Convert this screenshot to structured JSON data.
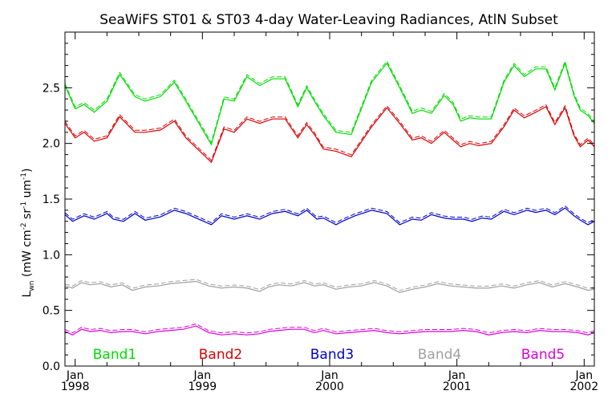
{
  "chart_data": {
    "type": "line",
    "title": "SeaWiFS ST01 & ST03 4-day Water-Leaving Radiances, AtlN Subset",
    "ylabel": {
      "main": "L",
      "sub": "wn",
      "units_pre": " (mW cm",
      "units_sup1": "-2",
      "units_mid": " sr",
      "units_sup2": "-1",
      "units_mid2": " um",
      "units_sup3": "-1",
      "units_post": ")"
    },
    "xlim": [
      1997.92,
      2002.08
    ],
    "ylim": [
      0,
      3.0
    ],
    "y_ticks": [
      0.0,
      0.5,
      1.0,
      1.5,
      2.0,
      2.5
    ],
    "y_tick_labels": [
      "0.0",
      "0.5",
      "1.0",
      "1.5",
      "2.0",
      "2.5"
    ],
    "x_ticks": [
      {
        "value": 1998.0,
        "month": "Jan",
        "year": "1998"
      },
      {
        "value": 1999.0,
        "month": "Jan",
        "year": "1999"
      },
      {
        "value": 2000.0,
        "month": "Jan",
        "year": "2000"
      },
      {
        "value": 2001.0,
        "month": "Jan",
        "year": "2001"
      },
      {
        "value": 2002.0,
        "month": "Jan",
        "year": "2002"
      }
    ],
    "series": [
      {
        "name": "Band1",
        "color": "#00dd00",
        "x": [
          1997.92,
          1998.0,
          1998.07,
          1998.15,
          1998.25,
          1998.35,
          1998.47,
          1998.55,
          1998.67,
          1998.78,
          1998.87,
          1999.07,
          1999.17,
          1999.25,
          1999.35,
          1999.45,
          1999.55,
          1999.65,
          1999.75,
          1999.82,
          1999.88,
          1999.95,
          2000.05,
          2000.17,
          2000.33,
          2000.45,
          2000.55,
          2000.65,
          2000.72,
          2000.8,
          2000.9,
          2000.97,
          2001.03,
          2001.1,
          2001.17,
          2001.27,
          2001.37,
          2001.45,
          2001.53,
          2001.62,
          2001.7,
          2001.77,
          2001.85,
          2001.92,
          2001.97,
          2002.03,
          2002.08
        ],
        "values": [
          2.52,
          2.31,
          2.35,
          2.28,
          2.38,
          2.62,
          2.42,
          2.38,
          2.42,
          2.55,
          2.38,
          1.99,
          2.4,
          2.38,
          2.6,
          2.52,
          2.58,
          2.58,
          2.33,
          2.5,
          2.38,
          2.25,
          2.1,
          2.08,
          2.55,
          2.72,
          2.5,
          2.27,
          2.3,
          2.27,
          2.43,
          2.35,
          2.2,
          2.23,
          2.22,
          2.22,
          2.55,
          2.7,
          2.6,
          2.67,
          2.67,
          2.48,
          2.72,
          2.43,
          2.3,
          2.25,
          2.18
        ]
      },
      {
        "name": "Band2",
        "color": "#dd0000",
        "x": [
          1997.92,
          1998.0,
          1998.07,
          1998.15,
          1998.25,
          1998.35,
          1998.47,
          1998.55,
          1998.67,
          1998.78,
          1998.87,
          1999.07,
          1999.17,
          1999.25,
          1999.35,
          1999.45,
          1999.55,
          1999.65,
          1999.75,
          1999.82,
          1999.88,
          1999.95,
          2000.05,
          2000.17,
          2000.33,
          2000.45,
          2000.55,
          2000.65,
          2000.72,
          2000.8,
          2000.9,
          2000.97,
          2001.03,
          2001.1,
          2001.17,
          2001.27,
          2001.37,
          2001.45,
          2001.53,
          2001.62,
          2001.7,
          2001.77,
          2001.85,
          2001.92,
          2001.97,
          2002.03,
          2002.08
        ],
        "values": [
          2.18,
          2.05,
          2.1,
          2.02,
          2.05,
          2.24,
          2.1,
          2.1,
          2.12,
          2.2,
          2.05,
          1.83,
          2.13,
          2.1,
          2.22,
          2.18,
          2.22,
          2.22,
          2.05,
          2.17,
          2.08,
          1.95,
          1.93,
          1.88,
          2.15,
          2.32,
          2.18,
          2.03,
          2.05,
          2.0,
          2.1,
          2.03,
          1.97,
          2.0,
          1.98,
          2.0,
          2.15,
          2.3,
          2.23,
          2.28,
          2.33,
          2.17,
          2.32,
          2.07,
          1.97,
          2.03,
          1.97
        ]
      },
      {
        "name": "Band3",
        "color": "#0000cc",
        "x": [
          1997.92,
          1997.98,
          1998.07,
          1998.15,
          1998.25,
          1998.3,
          1998.38,
          1998.47,
          1998.55,
          1998.67,
          1998.78,
          1998.87,
          1999.07,
          1999.15,
          1999.25,
          1999.35,
          1999.45,
          1999.55,
          1999.65,
          1999.75,
          1999.82,
          1999.9,
          1999.95,
          2000.05,
          2000.1,
          2000.2,
          2000.33,
          2000.45,
          2000.55,
          2000.65,
          2000.72,
          2000.8,
          2000.9,
          2000.97,
          2001.05,
          2001.12,
          2001.2,
          2001.27,
          2001.37,
          2001.45,
          2001.55,
          2001.62,
          2001.7,
          2001.77,
          2001.85,
          2001.92,
          2001.97,
          2002.03,
          2002.08
        ],
        "values": [
          1.36,
          1.3,
          1.35,
          1.32,
          1.37,
          1.32,
          1.3,
          1.37,
          1.31,
          1.34,
          1.4,
          1.37,
          1.27,
          1.35,
          1.32,
          1.35,
          1.32,
          1.37,
          1.39,
          1.35,
          1.4,
          1.32,
          1.33,
          1.27,
          1.3,
          1.35,
          1.4,
          1.37,
          1.27,
          1.32,
          1.31,
          1.36,
          1.33,
          1.32,
          1.32,
          1.3,
          1.33,
          1.32,
          1.39,
          1.36,
          1.4,
          1.38,
          1.4,
          1.36,
          1.42,
          1.35,
          1.31,
          1.27,
          1.3
        ]
      },
      {
        "name": "Band4",
        "color": "#a0a0a0",
        "x": [
          1997.92,
          1997.98,
          1998.05,
          1998.12,
          1998.2,
          1998.28,
          1998.37,
          1998.45,
          1998.55,
          1998.65,
          1998.75,
          1998.85,
          1998.95,
          1999.05,
          1999.15,
          1999.25,
          1999.35,
          1999.45,
          1999.52,
          1999.6,
          1999.7,
          1999.8,
          1999.88,
          1999.95,
          2000.05,
          2000.15,
          2000.25,
          2000.35,
          2000.45,
          2000.55,
          2000.65,
          2000.75,
          2000.85,
          2000.95,
          2001.05,
          2001.15,
          2001.25,
          2001.35,
          2001.45,
          2001.55,
          2001.65,
          2001.75,
          2001.85,
          2001.95,
          2002.03,
          2002.08
        ],
        "values": [
          0.72,
          0.7,
          0.75,
          0.73,
          0.74,
          0.71,
          0.73,
          0.68,
          0.71,
          0.72,
          0.74,
          0.75,
          0.76,
          0.72,
          0.7,
          0.71,
          0.7,
          0.67,
          0.71,
          0.73,
          0.72,
          0.75,
          0.72,
          0.73,
          0.69,
          0.71,
          0.72,
          0.75,
          0.72,
          0.66,
          0.69,
          0.71,
          0.74,
          0.72,
          0.71,
          0.7,
          0.7,
          0.72,
          0.7,
          0.73,
          0.75,
          0.71,
          0.74,
          0.71,
          0.68,
          0.69
        ]
      },
      {
        "name": "Band5",
        "color": "#dd00dd",
        "x": [
          1997.92,
          1997.98,
          1998.05,
          1998.12,
          1998.2,
          1998.28,
          1998.37,
          1998.45,
          1998.55,
          1998.65,
          1998.75,
          1998.85,
          1998.95,
          1999.05,
          1999.15,
          1999.25,
          1999.35,
          1999.45,
          1999.52,
          1999.6,
          1999.7,
          1999.8,
          1999.88,
          1999.95,
          2000.05,
          2000.15,
          2000.25,
          2000.35,
          2000.45,
          2000.55,
          2000.65,
          2000.75,
          2000.85,
          2000.95,
          2001.05,
          2001.15,
          2001.25,
          2001.35,
          2001.45,
          2001.55,
          2001.65,
          2001.75,
          2001.85,
          2001.95,
          2002.03,
          2002.08
        ],
        "values": [
          0.31,
          0.28,
          0.33,
          0.31,
          0.32,
          0.3,
          0.31,
          0.31,
          0.29,
          0.31,
          0.32,
          0.33,
          0.36,
          0.3,
          0.28,
          0.29,
          0.28,
          0.29,
          0.31,
          0.32,
          0.33,
          0.33,
          0.3,
          0.32,
          0.29,
          0.3,
          0.31,
          0.32,
          0.3,
          0.29,
          0.3,
          0.31,
          0.31,
          0.31,
          0.32,
          0.31,
          0.28,
          0.3,
          0.31,
          0.3,
          0.32,
          0.31,
          0.31,
          0.3,
          0.28,
          0.3
        ]
      }
    ]
  }
}
